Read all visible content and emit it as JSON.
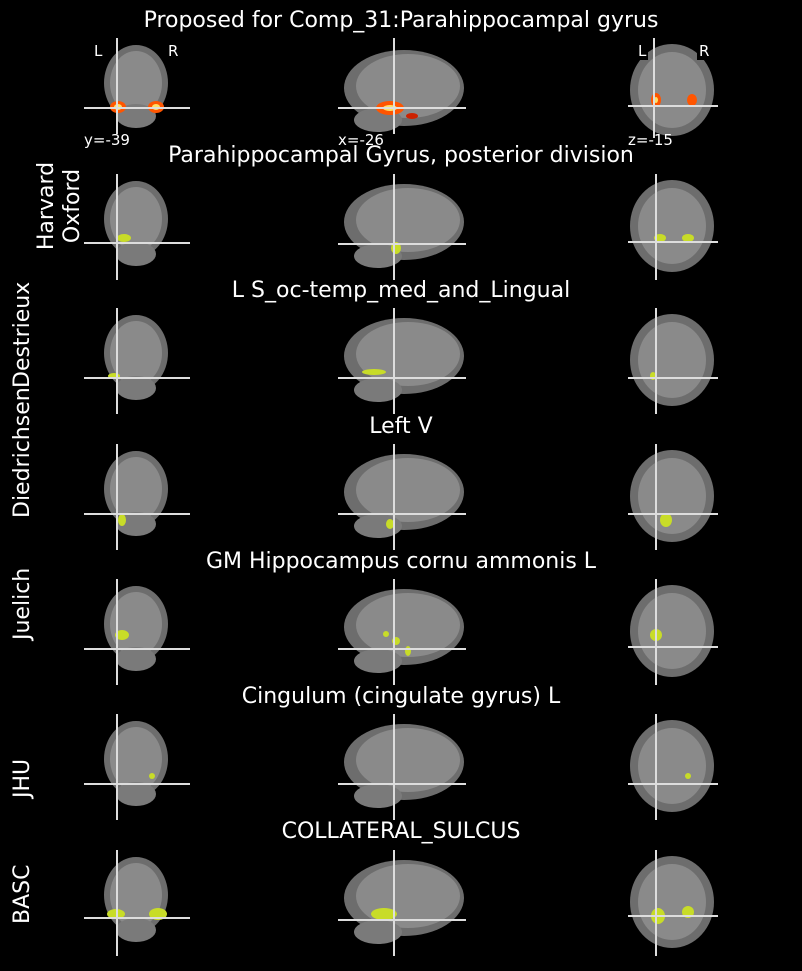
{
  "figure_title": "Proposed for Comp_31:Parahippocampal gyrus",
  "orientation": {
    "left": "L",
    "right": "R"
  },
  "coords": {
    "coronal": "y=-39",
    "sagittal": "x=-26",
    "axial": "z=-15"
  },
  "rows": [
    {
      "atlas": "",
      "region": "",
      "overlay_color": "#ff3300",
      "is_stat_map": true
    },
    {
      "atlas": "Harvard Oxford",
      "region": "Parahippocampal Gyrus, posterior division",
      "overlay_color": "#c8dc28"
    },
    {
      "atlas": "Destrieux",
      "region": "L S_oc-temp_med_and_Lingual",
      "overlay_color": "#c8dc28"
    },
    {
      "atlas": "Diedrichsen",
      "region": "Left V",
      "overlay_color": "#c8dc28"
    },
    {
      "atlas": "Juelich",
      "region": "GM Hippocampus cornu ammonis L",
      "overlay_color": "#c8dc28"
    },
    {
      "atlas": "JHU",
      "region": "Cingulum (cingulate gyrus) L",
      "overlay_color": "#c8dc28"
    },
    {
      "atlas": "BASC",
      "region": "COLLATERAL_SULCUS",
      "overlay_color": "#c8dc28"
    }
  ]
}
